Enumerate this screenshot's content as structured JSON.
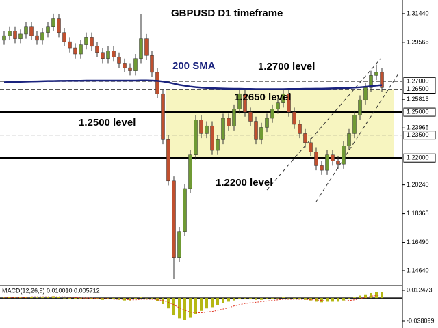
{
  "chart_data": {
    "type": "candlestick",
    "title": "GBPUSD D1 timeframe",
    "annotations": [
      "200 SMA",
      "1.2700 level",
      "1.2650 level",
      "1.2500 level",
      "1.2200 level"
    ],
    "up_color": "#6f9a34",
    "down_color": "#c0502f",
    "open": [
      1.297,
      1.3,
      1.303,
      1.298,
      1.301,
      1.306,
      1.3,
      1.297,
      1.302,
      1.306,
      1.311,
      1.302,
      1.296,
      1.292,
      1.288,
      1.294,
      1.299,
      1.293,
      1.289,
      1.285,
      1.29,
      1.286,
      1.282,
      1.279,
      1.277,
      1.285,
      1.298,
      1.287,
      1.276,
      1.262,
      1.232,
      1.205,
      1.155,
      1.172,
      1.2,
      1.222,
      1.245,
      1.236,
      1.241,
      1.225,
      1.232,
      1.246,
      1.241,
      1.252,
      1.262,
      1.25,
      1.244,
      1.232,
      1.24,
      1.246,
      1.252,
      1.256,
      1.262,
      1.25,
      1.242,
      1.236,
      1.23,
      1.224,
      1.215,
      1.212,
      1.222,
      1.218,
      1.216,
      1.228,
      1.236,
      1.248,
      1.258,
      1.266,
      1.274,
      1.276
    ],
    "high": [
      1.303,
      1.306,
      1.306,
      1.304,
      1.309,
      1.309,
      1.303,
      1.305,
      1.309,
      1.3144,
      1.314,
      1.305,
      1.299,
      1.295,
      1.297,
      1.302,
      1.302,
      1.296,
      1.292,
      1.293,
      1.293,
      1.289,
      1.285,
      1.282,
      1.288,
      1.314,
      1.301,
      1.29,
      1.279,
      1.265,
      1.235,
      1.208,
      1.175,
      1.203,
      1.225,
      1.248,
      1.248,
      1.244,
      1.244,
      1.235,
      1.249,
      1.249,
      1.255,
      1.265,
      1.265,
      1.253,
      1.247,
      1.243,
      1.249,
      1.255,
      1.259,
      1.265,
      1.265,
      1.253,
      1.245,
      1.239,
      1.233,
      1.227,
      1.218,
      1.225,
      1.225,
      1.221,
      1.231,
      1.239,
      1.251,
      1.261,
      1.269,
      1.277,
      1.281,
      1.279
    ],
    "low": [
      1.294,
      1.297,
      1.295,
      1.295,
      1.298,
      1.297,
      1.294,
      1.294,
      1.299,
      1.303,
      1.299,
      1.293,
      1.289,
      1.285,
      1.285,
      1.291,
      1.29,
      1.286,
      1.282,
      1.282,
      1.283,
      1.279,
      1.276,
      1.274,
      1.274,
      1.282,
      1.284,
      1.273,
      1.259,
      1.229,
      1.202,
      1.141,
      1.152,
      1.169,
      1.197,
      1.219,
      1.233,
      1.233,
      1.222,
      1.222,
      1.229,
      1.238,
      1.238,
      1.249,
      1.247,
      1.241,
      1.229,
      1.229,
      1.237,
      1.243,
      1.249,
      1.253,
      1.247,
      1.239,
      1.233,
      1.227,
      1.221,
      1.212,
      1.209,
      1.209,
      1.215,
      1.213,
      1.213,
      1.225,
      1.233,
      1.245,
      1.255,
      1.263,
      1.271,
      1.263
    ],
    "close": [
      1.3,
      1.303,
      1.298,
      1.301,
      1.306,
      1.3,
      1.297,
      1.302,
      1.306,
      1.311,
      1.302,
      1.296,
      1.292,
      1.288,
      1.294,
      1.299,
      1.293,
      1.289,
      1.285,
      1.29,
      1.286,
      1.282,
      1.279,
      1.277,
      1.285,
      1.298,
      1.287,
      1.276,
      1.262,
      1.232,
      1.205,
      1.155,
      1.172,
      1.2,
      1.222,
      1.245,
      1.236,
      1.241,
      1.225,
      1.232,
      1.246,
      1.241,
      1.252,
      1.262,
      1.25,
      1.244,
      1.232,
      1.24,
      1.246,
      1.252,
      1.256,
      1.262,
      1.25,
      1.242,
      1.236,
      1.23,
      1.224,
      1.215,
      1.212,
      1.222,
      1.218,
      1.216,
      1.228,
      1.236,
      1.248,
      1.258,
      1.266,
      1.274,
      1.276,
      1.266
    ],
    "sma": {
      "name": "200 SMA",
      "color": "#1a237e",
      "values": [
        1.2695,
        1.2696,
        1.2697,
        1.2698,
        1.2699,
        1.27,
        1.2701,
        1.2702,
        1.2703,
        1.2703,
        1.2704,
        1.2704,
        1.2705,
        1.2705,
        1.2705,
        1.2706,
        1.2706,
        1.2706,
        1.2706,
        1.2706,
        1.2706,
        1.2706,
        1.2706,
        1.2706,
        1.2706,
        1.2707,
        1.2707,
        1.2706,
        1.2704,
        1.27,
        1.2694,
        1.2686,
        1.2678,
        1.2672,
        1.2667,
        1.2663,
        1.266,
        1.2658,
        1.2656,
        1.2655,
        1.2654,
        1.2653,
        1.2652,
        1.2652,
        1.2651,
        1.2651,
        1.265,
        1.265,
        1.265,
        1.265,
        1.265,
        1.265,
        1.2651,
        1.2651,
        1.2651,
        1.2652,
        1.2652,
        1.2653,
        1.2653,
        1.2654,
        1.2655,
        1.2656,
        1.2657,
        1.2658,
        1.266,
        1.2662,
        1.2665,
        1.2669,
        1.2673,
        1.2676
      ]
    },
    "ylim": [
      1.1379,
      1.3233
    ],
    "yticks": [
      {
        "value": 1.3144,
        "label": "1.31440"
      },
      1.29565,
      1.25815,
      1.23965,
      {
        "value": 1.2024,
        "label": "1.20240"
      },
      1.18365,
      {
        "value": 1.1649,
        "label": "1.16490"
      },
      {
        "value": 1.1464,
        "label": "1.14640"
      }
    ],
    "levels": [
      {
        "value": 1.27,
        "label": "1.27000",
        "style": "dashed"
      },
      {
        "value": 1.265,
        "label": "1.26500",
        "style": "dashed"
      },
      {
        "value": 1.25,
        "label": "1.25000",
        "style": "solid"
      },
      {
        "value": 1.235,
        "label": "1.23500",
        "style": "dashed"
      },
      {
        "value": 1.22,
        "label": "1.22000",
        "style": "solid"
      }
    ],
    "zone": [
      1.22,
      1.265
    ],
    "zone_color": "#f7f5c0",
    "macd": {
      "label": "MACD(12,26,9) 0.010010 0.005712",
      "hist_color": "#b5b814",
      "signal_color": "#e0301e",
      "hist": [
        0.001,
        0.002,
        0.001,
        0.001,
        0.002,
        0.002,
        0.001,
        0.001,
        0.002,
        0.003,
        0.002,
        0,
        -0.001,
        -0.002,
        -0.001,
        0,
        -0.001,
        -0.002,
        -0.003,
        -0.002,
        -0.002,
        -0.003,
        -0.004,
        -0.004,
        -0.002,
        0.001,
        0,
        -0.002,
        -0.005,
        -0.01,
        -0.017,
        -0.028,
        -0.034,
        -0.036,
        -0.032,
        -0.026,
        -0.021,
        -0.017,
        -0.015,
        -0.012,
        -0.008,
        -0.006,
        -0.004,
        -0.002,
        -0.002,
        -0.002,
        -0.003,
        -0.003,
        -0.002,
        -0.001,
        0,
        0.001,
        0,
        -0.001,
        -0.002,
        -0.003,
        -0.004,
        -0.006,
        -0.007,
        -0.006,
        -0.006,
        -0.006,
        -0.004,
        -0.002,
        0.001,
        0.004,
        0.006,
        0.008,
        0.01,
        0.01
      ],
      "signal": [
        0.001,
        0.001,
        0.001,
        0.001,
        0.001,
        0.002,
        0.002,
        0.002,
        0.002,
        0.002,
        0.002,
        0.002,
        0.001,
        0.001,
        0,
        0,
        0,
        -0.001,
        -0.001,
        -0.001,
        -0.002,
        -0.002,
        -0.002,
        -0.003,
        -0.003,
        -0.002,
        -0.002,
        -0.002,
        -0.003,
        -0.004,
        -0.007,
        -0.011,
        -0.016,
        -0.02,
        -0.023,
        -0.024,
        -0.024,
        -0.023,
        -0.022,
        -0.02,
        -0.018,
        -0.016,
        -0.013,
        -0.011,
        -0.009,
        -0.008,
        -0.007,
        -0.006,
        -0.005,
        -0.004,
        -0.003,
        -0.002,
        -0.002,
        -0.002,
        -0.002,
        -0.002,
        -0.003,
        -0.003,
        -0.004,
        -0.005,
        -0.005,
        -0.005,
        -0.005,
        -0.004,
        -0.003,
        -0.001,
        0.001,
        0.003,
        0.004,
        0.0057
      ],
      "ylim": [
        -0.0482,
        0.0192
      ],
      "yticks": [
        0.012473,
        -0.038099
      ]
    }
  }
}
